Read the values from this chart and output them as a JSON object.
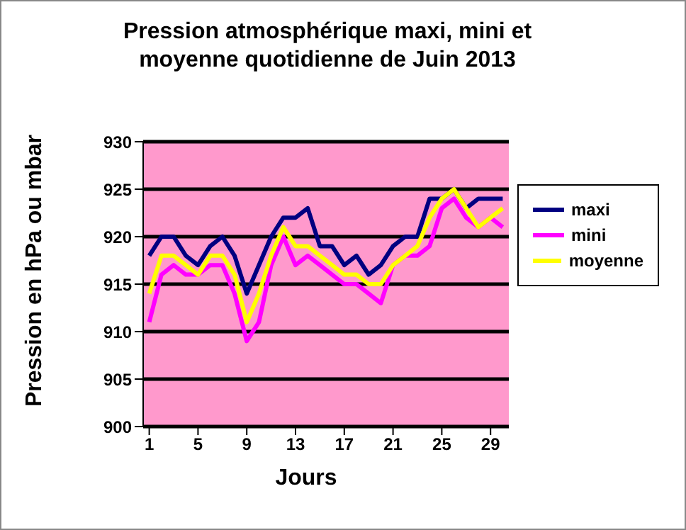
{
  "chart_data": {
    "type": "line",
    "title": "Pression atmosphérique maxi, mini et moyenne quotidienne de Juin  2013",
    "xlabel": "Jours",
    "ylabel": "Pression en hPa ou mbar",
    "x": [
      1,
      2,
      3,
      4,
      5,
      6,
      7,
      8,
      9,
      10,
      11,
      12,
      13,
      14,
      15,
      16,
      17,
      18,
      19,
      20,
      21,
      22,
      23,
      24,
      25,
      26,
      27,
      28,
      29,
      30
    ],
    "series": [
      {
        "name": "maxi",
        "color": "#000080",
        "values": [
          918,
          920,
          920,
          918,
          917,
          919,
          920,
          918,
          914,
          917,
          920,
          922,
          922,
          923,
          919,
          919,
          917,
          918,
          916,
          917,
          919,
          920,
          920,
          924,
          924,
          925,
          923,
          924,
          924,
          924
        ]
      },
      {
        "name": "mini",
        "color": "#ff00ff",
        "values": [
          911,
          916,
          917,
          916,
          916,
          917,
          917,
          914,
          909,
          911,
          917,
          920,
          917,
          918,
          917,
          916,
          915,
          915,
          914,
          913,
          917,
          918,
          918,
          919,
          923,
          924,
          922,
          921,
          922,
          921
        ]
      },
      {
        "name": "moyenne",
        "color": "#ffff00",
        "values": [
          914,
          918,
          918,
          917,
          916,
          918,
          918,
          916,
          911,
          914,
          918,
          921,
          919,
          919,
          918,
          917,
          916,
          916,
          915,
          915,
          917,
          918,
          919,
          922,
          924,
          925,
          923,
          921,
          922,
          923
        ]
      }
    ],
    "xlim": [
      0.5,
      30.5
    ],
    "xticks": [
      1,
      5,
      9,
      13,
      17,
      21,
      25,
      29
    ],
    "ylim": [
      900,
      930
    ],
    "yticks": [
      900,
      905,
      910,
      915,
      920,
      925,
      930
    ],
    "grid": "y",
    "legend": "right",
    "marker": "none",
    "line_style": "solid"
  }
}
